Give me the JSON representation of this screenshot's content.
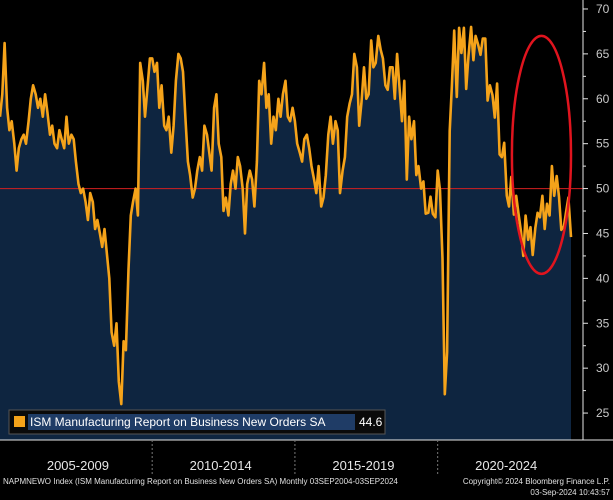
{
  "chart_data": {
    "type": "area",
    "title": "ISM Manufacturing Report on Business New Orders SA",
    "legend": {
      "label": "ISM Manufacturing Report on Business New Orders SA",
      "last_value": "44.6",
      "placement": "bottom-left"
    },
    "ylim": [
      22,
      71
    ],
    "y_ticks": [
      25,
      30,
      35,
      40,
      45,
      50,
      55,
      60,
      65,
      70
    ],
    "reference_line": 50,
    "x_range": [
      2004.67,
      2024.67
    ],
    "period_labels": [
      "2005-2009",
      "2010-2014",
      "2015-2019",
      "2020-2024"
    ],
    "highlight": {
      "shape": "ellipse",
      "color": "#e0141e",
      "x_range": [
        2022.6,
        2024.67
      ],
      "y_range": [
        40.5,
        67
      ]
    },
    "colors": {
      "line": "#f5a31a",
      "area": "#0e2540",
      "reference": "#d42020",
      "axis": "#e6e6e6"
    },
    "series": [
      {
        "name": "ISM Manufacturing Report on Business New Orders SA",
        "points": [
          [
            2004.67,
            58.0
          ],
          [
            2004.75,
            60.5
          ],
          [
            2004.83,
            66.2
          ],
          [
            2004.92,
            59.0
          ],
          [
            2005.0,
            56.5
          ],
          [
            2005.08,
            57.5
          ],
          [
            2005.17,
            55.0
          ],
          [
            2005.25,
            52.0
          ],
          [
            2005.33,
            54.5
          ],
          [
            2005.42,
            55.5
          ],
          [
            2005.5,
            56.0
          ],
          [
            2005.58,
            55.0
          ],
          [
            2005.67,
            57.5
          ],
          [
            2005.75,
            60.0
          ],
          [
            2005.83,
            61.5
          ],
          [
            2005.92,
            60.5
          ],
          [
            2006.0,
            59.0
          ],
          [
            2006.08,
            60.0
          ],
          [
            2006.17,
            58.0
          ],
          [
            2006.25,
            60.5
          ],
          [
            2006.33,
            58.5
          ],
          [
            2006.42,
            56.0
          ],
          [
            2006.5,
            57.0
          ],
          [
            2006.58,
            55.0
          ],
          [
            2006.67,
            54.5
          ],
          [
            2006.75,
            56.5
          ],
          [
            2006.83,
            55.5
          ],
          [
            2006.92,
            54.5
          ],
          [
            2007.0,
            58.0
          ],
          [
            2007.08,
            55.0
          ],
          [
            2007.17,
            56.0
          ],
          [
            2007.25,
            55.5
          ],
          [
            2007.33,
            53.0
          ],
          [
            2007.42,
            50.5
          ],
          [
            2007.5,
            49.5
          ],
          [
            2007.58,
            50.0
          ],
          [
            2007.67,
            48.5
          ],
          [
            2007.75,
            46.5
          ],
          [
            2007.83,
            49.5
          ],
          [
            2007.92,
            48.5
          ],
          [
            2008.0,
            45.5
          ],
          [
            2008.08,
            46.5
          ],
          [
            2008.17,
            45.0
          ],
          [
            2008.25,
            43.5
          ],
          [
            2008.33,
            45.5
          ],
          [
            2008.42,
            42.5
          ],
          [
            2008.5,
            40.0
          ],
          [
            2008.58,
            34.0
          ],
          [
            2008.67,
            32.5
          ],
          [
            2008.75,
            35.0
          ],
          [
            2008.83,
            28.5
          ],
          [
            2008.92,
            26.0
          ],
          [
            2009.0,
            33.0
          ],
          [
            2009.08,
            32.0
          ],
          [
            2009.17,
            41.0
          ],
          [
            2009.25,
            47.0
          ],
          [
            2009.33,
            48.5
          ],
          [
            2009.42,
            50.0
          ],
          [
            2009.5,
            47.0
          ],
          [
            2009.58,
            64.0
          ],
          [
            2009.67,
            62.0
          ],
          [
            2009.75,
            58.0
          ],
          [
            2009.83,
            61.0
          ],
          [
            2009.92,
            64.5
          ],
          [
            2010.0,
            64.5
          ],
          [
            2010.08,
            63.0
          ],
          [
            2010.17,
            64.0
          ],
          [
            2010.25,
            59.0
          ],
          [
            2010.33,
            61.5
          ],
          [
            2010.42,
            57.0
          ],
          [
            2010.5,
            56.5
          ],
          [
            2010.58,
            58.0
          ],
          [
            2010.67,
            54.0
          ],
          [
            2010.75,
            57.0
          ],
          [
            2010.83,
            62.0
          ],
          [
            2010.92,
            65.0
          ],
          [
            2011.0,
            64.5
          ],
          [
            2011.08,
            63.0
          ],
          [
            2011.17,
            57.5
          ],
          [
            2011.25,
            53.0
          ],
          [
            2011.33,
            51.5
          ],
          [
            2011.42,
            49.0
          ],
          [
            2011.5,
            50.0
          ],
          [
            2011.58,
            52.0
          ],
          [
            2011.67,
            53.5
          ],
          [
            2011.75,
            52.0
          ],
          [
            2011.83,
            57.0
          ],
          [
            2011.92,
            56.0
          ],
          [
            2012.0,
            54.0
          ],
          [
            2012.08,
            52.0
          ],
          [
            2012.17,
            59.0
          ],
          [
            2012.25,
            60.5
          ],
          [
            2012.33,
            55.0
          ],
          [
            2012.42,
            53.5
          ],
          [
            2012.5,
            47.5
          ],
          [
            2012.58,
            49.0
          ],
          [
            2012.67,
            47.0
          ],
          [
            2012.75,
            50.5
          ],
          [
            2012.83,
            52.0
          ],
          [
            2012.92,
            50.0
          ],
          [
            2013.0,
            53.5
          ],
          [
            2013.08,
            52.5
          ],
          [
            2013.17,
            50.0
          ],
          [
            2013.25,
            45.0
          ],
          [
            2013.33,
            50.5
          ],
          [
            2013.42,
            52.0
          ],
          [
            2013.5,
            51.0
          ],
          [
            2013.58,
            48.0
          ],
          [
            2013.67,
            53.0
          ],
          [
            2013.75,
            62.0
          ],
          [
            2013.83,
            60.5
          ],
          [
            2013.92,
            64.0
          ],
          [
            2014.0,
            59.0
          ],
          [
            2014.08,
            60.5
          ],
          [
            2014.17,
            55.0
          ],
          [
            2014.25,
            58.0
          ],
          [
            2014.33,
            56.5
          ],
          [
            2014.42,
            60.0
          ],
          [
            2014.5,
            58.0
          ],
          [
            2014.58,
            60.5
          ],
          [
            2014.67,
            62.0
          ],
          [
            2014.75,
            58.0
          ],
          [
            2014.83,
            57.5
          ],
          [
            2014.92,
            59.0
          ],
          [
            2015.0,
            57.5
          ],
          [
            2015.08,
            55.0
          ],
          [
            2015.17,
            54.0
          ],
          [
            2015.25,
            53.0
          ],
          [
            2015.33,
            55.5
          ],
          [
            2015.42,
            56.0
          ],
          [
            2015.5,
            54.5
          ],
          [
            2015.58,
            52.5
          ],
          [
            2015.67,
            51.0
          ],
          [
            2015.75,
            49.5
          ],
          [
            2015.83,
            52.5
          ],
          [
            2015.92,
            48.0
          ],
          [
            2016.0,
            49.0
          ],
          [
            2016.08,
            51.5
          ],
          [
            2016.17,
            56.0
          ],
          [
            2016.25,
            58.0
          ],
          [
            2016.33,
            55.0
          ],
          [
            2016.42,
            57.5
          ],
          [
            2016.5,
            56.5
          ],
          [
            2016.58,
            49.5
          ],
          [
            2016.67,
            52.0
          ],
          [
            2016.75,
            53.5
          ],
          [
            2016.83,
            58.0
          ],
          [
            2016.92,
            59.5
          ],
          [
            2017.0,
            60.5
          ],
          [
            2017.08,
            65.0
          ],
          [
            2017.17,
            63.5
          ],
          [
            2017.25,
            57.0
          ],
          [
            2017.33,
            59.5
          ],
          [
            2017.42,
            63.5
          ],
          [
            2017.5,
            60.0
          ],
          [
            2017.58,
            60.5
          ],
          [
            2017.67,
            66.5
          ],
          [
            2017.75,
            63.5
          ],
          [
            2017.83,
            64.0
          ],
          [
            2017.92,
            67.0
          ],
          [
            2018.0,
            65.5
          ],
          [
            2018.08,
            64.5
          ],
          [
            2018.17,
            61.5
          ],
          [
            2018.25,
            61.0
          ],
          [
            2018.33,
            63.5
          ],
          [
            2018.42,
            63.5
          ],
          [
            2018.5,
            60.0
          ],
          [
            2018.58,
            65.0
          ],
          [
            2018.67,
            61.0
          ],
          [
            2018.75,
            57.5
          ],
          [
            2018.83,
            62.0
          ],
          [
            2018.92,
            51.0
          ],
          [
            2019.0,
            58.0
          ],
          [
            2019.08,
            55.5
          ],
          [
            2019.17,
            57.5
          ],
          [
            2019.25,
            51.5
          ],
          [
            2019.33,
            52.5
          ],
          [
            2019.42,
            50.0
          ],
          [
            2019.5,
            50.8
          ],
          [
            2019.58,
            47.2
          ],
          [
            2019.67,
            47.3
          ],
          [
            2019.75,
            49.1
          ],
          [
            2019.83,
            47.2
          ],
          [
            2019.92,
            46.8
          ],
          [
            2020.0,
            52.0
          ],
          [
            2020.08,
            49.8
          ],
          [
            2020.17,
            42.2
          ],
          [
            2020.25,
            27.1
          ],
          [
            2020.33,
            31.8
          ],
          [
            2020.42,
            56.4
          ],
          [
            2020.5,
            61.5
          ],
          [
            2020.58,
            67.6
          ],
          [
            2020.67,
            60.2
          ],
          [
            2020.75,
            67.9
          ],
          [
            2020.83,
            65.1
          ],
          [
            2020.92,
            67.9
          ],
          [
            2021.0,
            61.1
          ],
          [
            2021.08,
            64.8
          ],
          [
            2021.17,
            68.0
          ],
          [
            2021.25,
            64.3
          ],
          [
            2021.33,
            67.0
          ],
          [
            2021.42,
            66.0
          ],
          [
            2021.5,
            64.9
          ],
          [
            2021.58,
            66.7
          ],
          [
            2021.67,
            66.7
          ],
          [
            2021.75,
            59.8
          ],
          [
            2021.83,
            61.5
          ],
          [
            2021.92,
            60.4
          ],
          [
            2022.0,
            57.9
          ],
          [
            2022.08,
            61.7
          ],
          [
            2022.17,
            53.8
          ],
          [
            2022.25,
            53.5
          ],
          [
            2022.33,
            55.1
          ],
          [
            2022.42,
            49.2
          ],
          [
            2022.5,
            48.0
          ],
          [
            2022.58,
            51.3
          ],
          [
            2022.67,
            47.1
          ],
          [
            2022.75,
            49.2
          ],
          [
            2022.83,
            47.2
          ],
          [
            2022.92,
            45.2
          ],
          [
            2023.0,
            42.5
          ],
          [
            2023.08,
            47.0
          ],
          [
            2023.17,
            44.3
          ],
          [
            2023.25,
            45.7
          ],
          [
            2023.33,
            42.6
          ],
          [
            2023.42,
            45.6
          ],
          [
            2023.5,
            47.3
          ],
          [
            2023.58,
            46.8
          ],
          [
            2023.67,
            49.2
          ],
          [
            2023.75,
            45.5
          ],
          [
            2023.83,
            48.3
          ],
          [
            2023.92,
            47.0
          ],
          [
            2024.0,
            52.5
          ],
          [
            2024.08,
            49.2
          ],
          [
            2024.17,
            51.4
          ],
          [
            2024.25,
            49.1
          ],
          [
            2024.33,
            45.4
          ],
          [
            2024.42,
            45.8
          ],
          [
            2024.5,
            47.4
          ],
          [
            2024.58,
            49.0
          ],
          [
            2024.67,
            44.6
          ]
        ]
      }
    ]
  },
  "footer": {
    "source_line": "NAPMNEWO Index (ISM Manufacturing Report on Business New Orders SA)  Monthly 03SEP2004-03SEP2024",
    "copyright": "Copyright© 2024 Bloomberg Finance L.P.",
    "timestamp": "03-Sep-2024 10:43:57"
  }
}
